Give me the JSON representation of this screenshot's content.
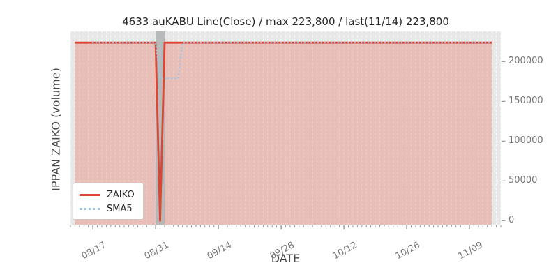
{
  "chart_data": {
    "type": "line",
    "title": "4633 auKABU Line(Close) / max 223,800 / last(11/14) 223,800",
    "xlabel": "DATE",
    "ylabel": "IPPAN ZAIKO (volume)",
    "x_domain": [
      "08/12",
      "11/16"
    ],
    "ylim": [
      -5000,
      238000
    ],
    "y_ticks": [
      0,
      50000,
      100000,
      150000,
      200000
    ],
    "x_major_ticks": [
      "08/17",
      "08/31",
      "09/14",
      "09/28",
      "10/12",
      "10/26",
      "11/09"
    ],
    "x_minor_ticks": "daily",
    "grid": {
      "vertical_daily_dashed": true,
      "horizontal": false
    },
    "max_value": 223800,
    "last_value": {
      "date": "11/14",
      "value": 223800
    },
    "series": [
      {
        "name": "ZAIKO",
        "style": "solid",
        "color": "#dc4632",
        "fill": true,
        "fill_color": "#e8745f",
        "fill_opacity": 0.35,
        "points": [
          [
            "08/13",
            223800
          ],
          [
            "08/31",
            223800
          ],
          [
            "09/01",
            0
          ],
          [
            "09/02",
            223800
          ],
          [
            "11/14",
            223800
          ]
        ]
      },
      {
        "name": "SMA5",
        "style": "dotted",
        "color": "#9fc6e0",
        "points": [
          [
            "08/17",
            223800
          ],
          [
            "08/31",
            223800
          ],
          [
            "09/01",
            179040
          ],
          [
            "09/05",
            179040
          ],
          [
            "09/06",
            223800
          ],
          [
            "11/14",
            223800
          ]
        ]
      }
    ],
    "band": {
      "from": "08/31",
      "to": "09/02",
      "color": "#b2b5b5"
    },
    "legend": {
      "position": "lower left",
      "items": [
        "ZAIKO",
        "SMA5"
      ]
    },
    "colors": {
      "figure_bg": "#ffffff",
      "plot_bg": "#e8e8e8",
      "grid_line": "#ffffff",
      "tick_mark": "#8a8a8a",
      "tick_label": "#767676",
      "axis_label": "#4a4a4a",
      "title": "#262626"
    }
  }
}
